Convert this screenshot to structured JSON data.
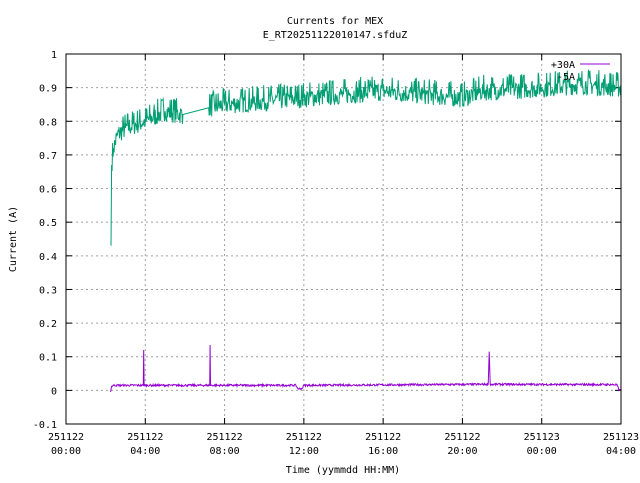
{
  "chart_data": {
    "type": "line",
    "title": "Currents for MEX",
    "subtitle": "E_RT20251122010147.sfduZ",
    "xlabel": "Time (yymmdd HH:MM)",
    "ylabel": "Current (A)",
    "x_unit": "hours since 251122 00:00",
    "xlim": [
      0,
      28
    ],
    "ylim": [
      -0.1,
      1
    ],
    "grid": true,
    "legend_placement": "top-right",
    "yticks": [
      "-0.1",
      "0",
      "0.1",
      "0.2",
      "0.3",
      "0.4",
      "0.5",
      "0.6",
      "0.7",
      "0.8",
      "0.9",
      "1"
    ],
    "xticks": [
      {
        "date": "251122",
        "time": "00:00"
      },
      {
        "date": "251122",
        "time": "04:00"
      },
      {
        "date": "251122",
        "time": "08:00"
      },
      {
        "date": "251122",
        "time": "12:00"
      },
      {
        "date": "251122",
        "time": "16:00"
      },
      {
        "date": "251122",
        "time": "20:00"
      },
      {
        "date": "251123",
        "time": "00:00"
      },
      {
        "date": "251123",
        "time": "04:00"
      }
    ],
    "series": [
      {
        "name": "+30A",
        "color": "#9400d3",
        "noise": 0.003,
        "x": [
          2.25,
          2.3,
          2.4,
          3.9,
          3.92,
          3.94,
          7.25,
          7.27,
          7.29,
          11.6,
          11.7,
          11.9,
          12.0,
          21.3,
          21.35,
          21.4,
          27.8,
          27.9,
          28.0
        ],
        "y": [
          -0.005,
          0.012,
          0.015,
          0.015,
          0.12,
          0.015,
          0.015,
          0.135,
          0.015,
          0.015,
          0.005,
          0.005,
          0.015,
          0.018,
          0.115,
          0.018,
          0.017,
          0.0,
          0.0
        ]
      },
      {
        "name": "-5A",
        "color": "#009e73",
        "noise": 0.03,
        "x": [
          2.27,
          2.3,
          2.4,
          2.6,
          3.0,
          4.0,
          5.0,
          5.9,
          7.2,
          8.0,
          10.0,
          12.0,
          14.0,
          16.0,
          18.0,
          20.0,
          21.0,
          24.0,
          26.0,
          28.0
        ],
        "y": [
          0.43,
          0.67,
          0.72,
          0.76,
          0.78,
          0.8,
          0.83,
          0.82,
          0.84,
          0.85,
          0.86,
          0.87,
          0.88,
          0.89,
          0.88,
          0.87,
          0.89,
          0.9,
          0.91,
          0.9
        ]
      }
    ]
  }
}
